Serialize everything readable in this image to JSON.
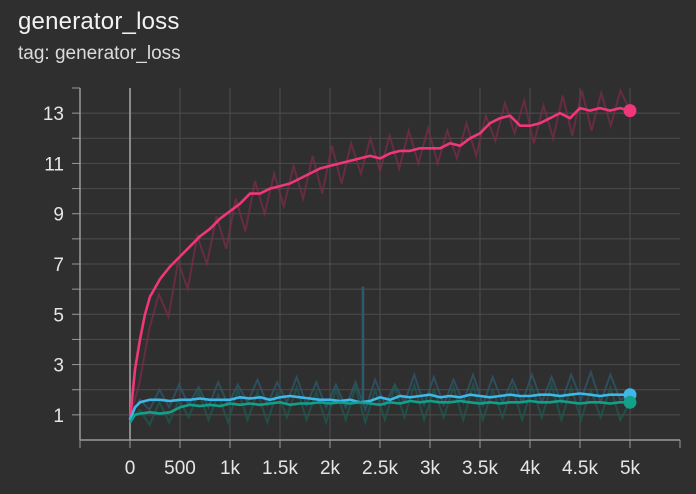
{
  "card": {
    "title": "generator_loss",
    "tag_line": "tag: generator_loss"
  },
  "chart_data": {
    "type": "line",
    "title": "generator_loss",
    "subtitle": "tag: generator_loss",
    "xlabel": "",
    "ylabel": "",
    "xlim": [
      -500,
      5500
    ],
    "ylim": [
      0,
      14
    ],
    "grid": true,
    "x_ticks": [
      0,
      500,
      1000,
      1500,
      2000,
      2500,
      3000,
      3500,
      4000,
      4500,
      5000
    ],
    "x_tick_labels": [
      "0",
      "500",
      "1k",
      "1.5k",
      "2k",
      "2.5k",
      "3k",
      "3.5k",
      "4k",
      "4.5k",
      "5k"
    ],
    "y_ticks": [
      1,
      3,
      5,
      7,
      9,
      11,
      13
    ],
    "y_tick_labels": [
      "1",
      "3",
      "5",
      "7",
      "9",
      "11",
      "13"
    ],
    "series": [
      {
        "color": "#f0377a",
        "raw_color": "#7a2c49",
        "x": [
          0,
          50,
          100,
          150,
          200,
          300,
          400,
          500,
          600,
          700,
          800,
          900,
          1000,
          1100,
          1200,
          1300,
          1400,
          1500,
          1600,
          1700,
          1800,
          1900,
          2000,
          2100,
          2200,
          2300,
          2400,
          2500,
          2600,
          2700,
          2800,
          2900,
          3000,
          3100,
          3200,
          3300,
          3400,
          3500,
          3600,
          3700,
          3800,
          3900,
          4000,
          4100,
          4200,
          4300,
          4400,
          4500,
          4600,
          4700,
          4800,
          4900,
          5000
        ],
        "values": [
          0.8,
          2.8,
          4.0,
          5.0,
          5.7,
          6.4,
          6.9,
          7.3,
          7.7,
          8.1,
          8.4,
          8.8,
          9.1,
          9.4,
          9.8,
          9.8,
          10.0,
          10.1,
          10.2,
          10.4,
          10.6,
          10.8,
          10.9,
          11.0,
          11.1,
          11.2,
          11.3,
          11.2,
          11.4,
          11.5,
          11.5,
          11.6,
          11.6,
          11.6,
          11.8,
          11.7,
          12.0,
          12.2,
          12.6,
          12.8,
          12.9,
          12.5,
          12.5,
          12.6,
          12.8,
          13.0,
          12.8,
          13.2,
          13.1,
          13.2,
          13.1,
          13.2,
          13.1
        ],
        "raw_values": [
          0.9,
          2.3,
          4.4,
          5.8,
          4.9,
          7.1,
          6.0,
          8.1,
          7.0,
          8.9,
          7.6,
          9.6,
          8.3,
          10.3,
          9.0,
          10.6,
          9.3,
          10.9,
          9.6,
          11.3,
          9.8,
          11.7,
          10.2,
          11.8,
          10.6,
          12.0,
          10.7,
          12.1,
          10.8,
          12.3,
          11.0,
          12.4,
          11.0,
          12.3,
          11.2,
          12.6,
          11.3,
          12.9,
          11.9,
          13.4,
          12.2,
          13.5,
          11.8,
          13.3,
          12.0,
          13.7,
          12.1,
          13.9,
          12.3,
          13.8,
          12.5,
          13.9,
          13.1
        ]
      },
      {
        "color": "#3db8e8",
        "raw_color": "#2c5a6e",
        "x": [
          0,
          50,
          100,
          200,
          300,
          400,
          500,
          600,
          700,
          800,
          900,
          1000,
          1100,
          1200,
          1300,
          1400,
          1500,
          1600,
          1700,
          1800,
          1900,
          2000,
          2100,
          2200,
          2300,
          2400,
          2500,
          2600,
          2700,
          2800,
          2900,
          3000,
          3100,
          3200,
          3300,
          3400,
          3500,
          3600,
          3700,
          3800,
          3900,
          4000,
          4100,
          4200,
          4300,
          4400,
          4500,
          4600,
          4700,
          4800,
          4900,
          5000
        ],
        "values": [
          0.8,
          1.3,
          1.5,
          1.6,
          1.6,
          1.55,
          1.6,
          1.6,
          1.65,
          1.6,
          1.6,
          1.6,
          1.7,
          1.65,
          1.7,
          1.6,
          1.7,
          1.75,
          1.7,
          1.65,
          1.6,
          1.6,
          1.55,
          1.6,
          1.5,
          1.55,
          1.7,
          1.6,
          1.75,
          1.7,
          1.75,
          1.8,
          1.7,
          1.75,
          1.7,
          1.8,
          1.75,
          1.7,
          1.75,
          1.8,
          1.75,
          1.75,
          1.8,
          1.8,
          1.75,
          1.8,
          1.85,
          1.8,
          1.75,
          1.8,
          1.8,
          1.8
        ],
        "raw_values": [
          0.9,
          1.6,
          1.2,
          2.0,
          1.3,
          2.2,
          1.4,
          2.1,
          1.3,
          2.3,
          1.4,
          2.2,
          1.5,
          2.4,
          1.4,
          2.3,
          1.5,
          2.5,
          1.4,
          2.3,
          1.3,
          2.2,
          1.3,
          2.3,
          1.2,
          2.4,
          1.4,
          2.2,
          1.5,
          2.6,
          1.4,
          2.5,
          1.4,
          2.4,
          1.5,
          2.6,
          1.4,
          2.5,
          1.5,
          2.4,
          1.5,
          2.6,
          1.5,
          2.5,
          1.5,
          2.6,
          1.6,
          2.7,
          1.5,
          2.6,
          1.6,
          1.8
        ]
      },
      {
        "color": "#12a08a",
        "raw_color": "#1f5a52",
        "x": [
          0,
          50,
          100,
          200,
          300,
          400,
          500,
          600,
          700,
          800,
          900,
          1000,
          1100,
          1200,
          1300,
          1400,
          1500,
          1600,
          1700,
          1800,
          1900,
          2000,
          2100,
          2200,
          2300,
          2400,
          2500,
          2600,
          2700,
          2800,
          2900,
          3000,
          3100,
          3200,
          3300,
          3400,
          3500,
          3600,
          3700,
          3800,
          3900,
          4000,
          4100,
          4200,
          4300,
          4400,
          4500,
          4600,
          4700,
          4800,
          4900,
          5000
        ],
        "values": [
          0.7,
          1.0,
          1.05,
          1.1,
          1.05,
          1.1,
          1.3,
          1.4,
          1.35,
          1.4,
          1.35,
          1.45,
          1.4,
          1.45,
          1.4,
          1.45,
          1.5,
          1.4,
          1.45,
          1.45,
          1.5,
          1.45,
          1.5,
          1.45,
          1.5,
          1.45,
          1.4,
          1.5,
          1.45,
          1.55,
          1.5,
          1.55,
          1.5,
          1.5,
          1.55,
          1.5,
          1.45,
          1.5,
          1.45,
          1.5,
          1.5,
          1.55,
          1.5,
          1.5,
          1.55,
          1.5,
          1.45,
          1.5,
          1.5,
          1.45,
          1.5,
          1.5
        ],
        "raw_values": [
          0.8,
          1.2,
          0.6,
          1.5,
          0.7,
          1.6,
          0.9,
          1.9,
          0.8,
          1.8,
          0.7,
          2.0,
          0.8,
          1.9,
          0.7,
          1.9,
          0.9,
          2.1,
          0.8,
          1.9,
          0.7,
          2.0,
          0.8,
          2.1,
          0.7,
          2.0,
          0.8,
          2.1,
          0.9,
          2.2,
          0.8,
          2.0,
          0.9,
          2.1,
          0.8,
          2.2,
          0.8,
          2.0,
          0.9,
          2.1,
          0.8,
          2.1,
          0.9,
          2.2,
          0.8,
          2.1,
          0.8,
          2.0,
          0.9,
          2.1,
          0.8,
          1.5
        ]
      }
    ],
    "spike": {
      "x": 2330,
      "value": 6.1,
      "color": "#2c5a6e"
    }
  }
}
